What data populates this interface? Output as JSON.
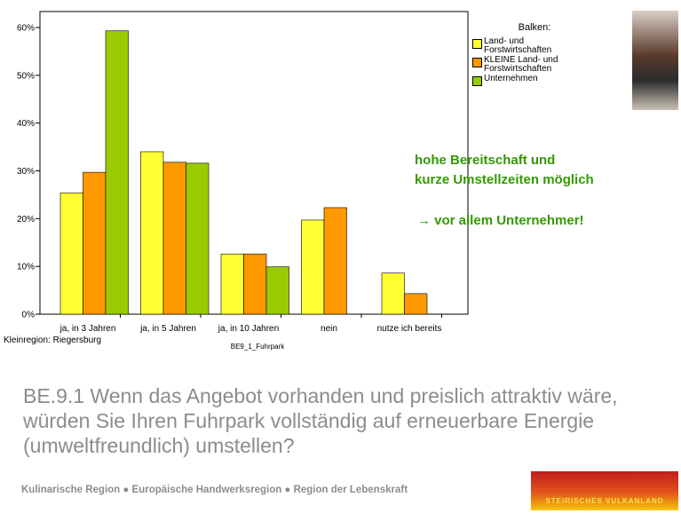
{
  "chart_data": {
    "type": "bar",
    "categories": [
      "ja, in 3 Jahren",
      "ja, in 5 Jahren",
      "ja, in 10 Jahren",
      "nein",
      "nutze ich bereits"
    ],
    "series": [
      {
        "name": "Land- und Forstwirtschaften",
        "color": "#ffff33",
        "values": [
          25.4,
          34.0,
          12.6,
          19.7,
          8.6
        ]
      },
      {
        "name": "KLEINE Land- und Forstwirtschaften",
        "color": "#ff9900",
        "values": [
          29.7,
          31.8,
          12.6,
          22.3,
          4.3
        ]
      },
      {
        "name": "Unternehmen",
        "color": "#99cc00",
        "values": [
          59.3,
          31.6,
          9.9,
          null,
          null
        ]
      }
    ],
    "legend_title": "Balken:",
    "ylim": [
      0,
      60
    ],
    "yticks": [
      {
        "value": 0,
        "label": "0%"
      },
      {
        "value": 10,
        "label": "10%"
      },
      {
        "value": 20,
        "label": "20%"
      },
      {
        "value": 30,
        "label": "30%"
      },
      {
        "value": 40,
        "label": "40%"
      },
      {
        "value": 50,
        "label": "50%"
      },
      {
        "value": 60,
        "label": "60%"
      }
    ],
    "grid": false,
    "footnote": "Kleinregion: Riegersburg",
    "x_label": "BE9_1_Fuhrpark"
  },
  "annotations": [
    "hohe Bereitschaft und",
    "kurze Umstellzeiten möglich",
    "→ vor allem Unternehmer!"
  ],
  "question": "BE.9.1 Wenn das Angebot vorhanden und preislich attraktiv wäre, würden Sie Ihren Fuhrpark vollständig auf erneuerbare Energie (umweltfreundlich) umstellen?",
  "footer": "Kulinarische Region ● Europäische Handwerksregion ● Region der Lebenskraft",
  "logo": "STEIRISCHES VULKANLAND"
}
